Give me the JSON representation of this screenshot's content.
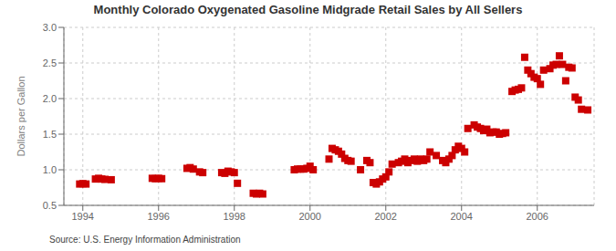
{
  "chart_data": {
    "type": "scatter",
    "title": "Monthly Colorado Oxygenated Gasoline Midgrade Retail Sales by All Sellers",
    "y_label": "Dollars per Gallon",
    "annotations": [
      "Source: U.S. Energy Information Administration"
    ],
    "color": "#cc0000",
    "marker": "square",
    "grid": true,
    "xlim": [
      1993.5,
      2007.5
    ],
    "ylim": [
      0.5,
      3.0
    ],
    "xticks": [
      1994,
      1996,
      1998,
      2000,
      2002,
      2004,
      2006
    ],
    "yticks": [
      0.5,
      {
        "value": 1.0,
        "label": "1.0"
      },
      1.5,
      {
        "value": 2.0,
        "label": "2.0"
      },
      2.5,
      {
        "value": 3.0,
        "label": "3.0"
      }
    ],
    "x": [
      1993.917,
      1994.0,
      1994.083,
      1994.333,
      1994.417,
      1994.5,
      1994.583,
      1994.75,
      1995.833,
      1995.917,
      1996.0,
      1996.083,
      1996.75,
      1996.833,
      1996.917,
      1997.083,
      1997.167,
      1997.667,
      1997.75,
      1997.833,
      1997.917,
      1998.0,
      1998.083,
      1998.5,
      1998.583,
      1998.667,
      1998.75,
      1999.583,
      1999.667,
      1999.75,
      1999.833,
      1999.917,
      2000.0,
      2000.083,
      2000.5,
      2000.583,
      2000.667,
      2000.75,
      2000.833,
      2000.917,
      2001.0,
      2001.083,
      2001.333,
      2001.5,
      2001.583,
      2001.667,
      2001.75,
      2001.833,
      2001.917,
      2002.0,
      2002.083,
      2002.167,
      2002.333,
      2002.417,
      2002.5,
      2002.583,
      2002.667,
      2002.75,
      2002.833,
      2002.917,
      2003.0,
      2003.083,
      2003.167,
      2003.333,
      2003.5,
      2003.583,
      2003.667,
      2003.75,
      2003.833,
      2003.917,
      2004.0,
      2004.083,
      2004.167,
      2004.333,
      2004.417,
      2004.5,
      2004.583,
      2004.667,
      2004.75,
      2004.833,
      2004.917,
      2005.0,
      2005.083,
      2005.167,
      2005.333,
      2005.417,
      2005.5,
      2005.583,
      2005.667,
      2005.75,
      2005.833,
      2005.917,
      2006.0,
      2006.083,
      2006.167,
      2006.333,
      2006.417,
      2006.5,
      2006.583,
      2006.667,
      2006.75,
      2006.833,
      2006.917,
      2007.0,
      2007.083,
      2007.167,
      2007.333
    ],
    "values": [
      0.8,
      0.805,
      0.8,
      0.87,
      0.88,
      0.87,
      0.865,
      0.86,
      0.88,
      0.875,
      0.88,
      0.875,
      1.02,
      1.03,
      1.01,
      0.97,
      0.96,
      0.96,
      0.95,
      0.98,
      0.97,
      0.96,
      0.81,
      0.67,
      0.66,
      0.67,
      0.66,
      1.0,
      1.01,
      1.01,
      1.01,
      1.02,
      1.05,
      1.0,
      1.15,
      1.3,
      1.28,
      1.26,
      1.22,
      1.16,
      1.13,
      1.12,
      1.0,
      1.13,
      1.1,
      0.82,
      0.8,
      0.83,
      0.87,
      0.9,
      0.97,
      1.08,
      1.1,
      1.12,
      1.15,
      1.1,
      1.13,
      1.15,
      1.12,
      1.15,
      1.13,
      1.15,
      1.25,
      1.2,
      1.13,
      1.1,
      1.15,
      1.2,
      1.28,
      1.33,
      1.3,
      1.25,
      1.58,
      1.63,
      1.6,
      1.58,
      1.55,
      1.57,
      1.52,
      1.53,
      1.53,
      1.5,
      1.51,
      1.52,
      2.1,
      2.12,
      2.13,
      2.15,
      2.58,
      2.4,
      2.35,
      2.3,
      2.28,
      2.2,
      2.4,
      2.42,
      2.47,
      2.48,
      2.6,
      2.48,
      2.25,
      2.44,
      2.43,
      2.02,
      1.98,
      1.85,
      1.84
    ]
  }
}
